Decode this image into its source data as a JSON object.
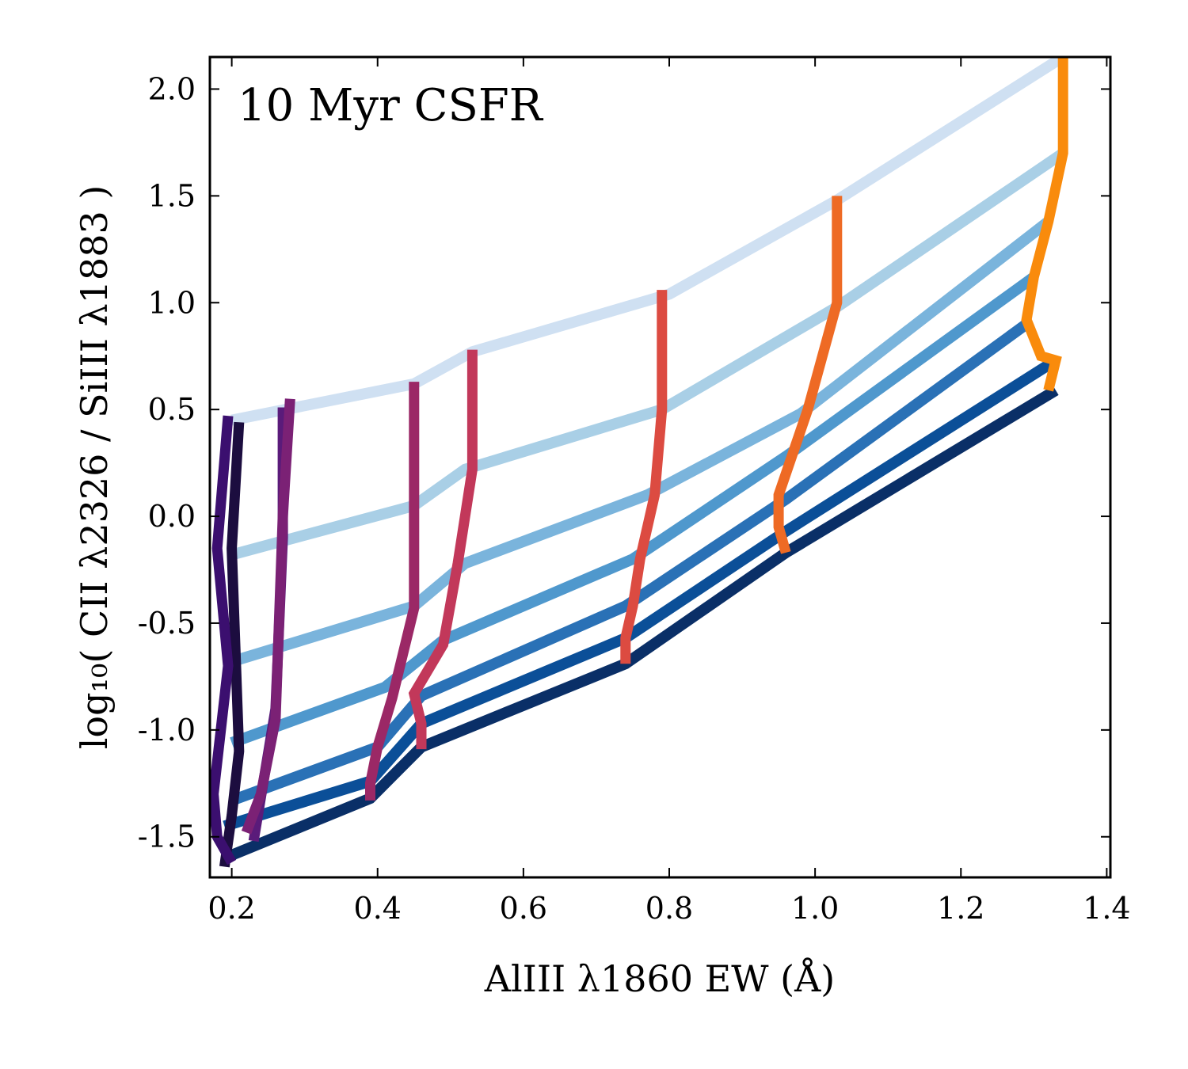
{
  "chart_data": {
    "type": "line",
    "annotation": "10 Myr CSFR",
    "xlabel": "AlIII λ1860 EW (Å)",
    "ylabel": "log₁₀( CII λ2326 / SiIII λ1883 )",
    "xlim": [
      0.17,
      1.405
    ],
    "ylim": [
      -1.69,
      2.15
    ],
    "xticks": [
      0.2,
      0.4,
      0.6,
      0.8,
      1.0,
      1.2,
      1.4
    ],
    "xtick_labels": [
      "0.2",
      "0.4",
      "0.6",
      "0.8",
      "1.0",
      "1.2",
      "1.4"
    ],
    "yticks": [
      2.0,
      1.5,
      1.0,
      0.5,
      0.0,
      -0.5,
      -1.0,
      -1.5
    ],
    "ytick_labels": [
      "2.0",
      "1.5",
      "1.0",
      "0.5",
      "0.0",
      "-0.5",
      "-1.0",
      "-1.5"
    ],
    "grid": false,
    "blue_series": [
      {
        "name": "blue-1",
        "color": "#cfe0f2",
        "x": [
          0.2,
          0.45,
          0.53,
          0.8,
          1.03,
          1.34
        ],
        "y": [
          0.45,
          0.62,
          0.77,
          1.04,
          1.48,
          2.15
        ]
      },
      {
        "name": "blue-2",
        "color": "#a9cfe6",
        "x": [
          0.2,
          0.45,
          0.52,
          0.79,
          1.03,
          1.34
        ],
        "y": [
          -0.18,
          0.05,
          0.22,
          0.5,
          0.98,
          1.7
        ]
      },
      {
        "name": "blue-3",
        "color": "#7ab4dc",
        "x": [
          0.2,
          0.45,
          0.52,
          0.77,
          0.98,
          1.32
        ],
        "y": [
          -0.68,
          -0.42,
          -0.22,
          0.1,
          0.48,
          1.38
        ]
      },
      {
        "name": "blue-4",
        "color": "#4f98cd",
        "x": [
          0.2,
          0.41,
          0.49,
          0.75,
          0.96,
          1.3
        ],
        "y": [
          -1.06,
          -0.8,
          -0.58,
          -0.2,
          0.28,
          1.12
        ]
      },
      {
        "name": "blue-5",
        "color": "#2a71b6",
        "x": [
          0.2,
          0.4,
          0.46,
          0.74,
          0.96,
          1.29
        ],
        "y": [
          -1.33,
          -1.08,
          -0.84,
          -0.42,
          0.08,
          0.9
        ]
      },
      {
        "name": "blue-6",
        "color": "#0b4f98",
        "x": [
          0.19,
          0.39,
          0.46,
          0.74,
          0.96,
          1.33
        ],
        "y": [
          -1.45,
          -1.24,
          -0.97,
          -0.57,
          -0.07,
          0.73
        ]
      },
      {
        "name": "blue-7",
        "color": "#0a2f67",
        "x": [
          0.19,
          0.39,
          0.46,
          0.74,
          0.96,
          1.33
        ],
        "y": [
          -1.6,
          -1.32,
          -1.08,
          -0.69,
          -0.17,
          0.59
        ]
      }
    ],
    "warm_series": [
      {
        "name": "dark-1",
        "color": "#1c0d3f",
        "x": [
          0.21,
          0.2,
          0.21,
          0.2,
          0.19
        ],
        "y": [
          0.44,
          -0.15,
          -1.1,
          -1.4,
          -1.64
        ]
      },
      {
        "name": "dark-2",
        "color": "#3b0f6f",
        "x": [
          0.195,
          0.18,
          0.195,
          0.175,
          0.18,
          0.2
        ],
        "y": [
          0.47,
          -0.15,
          -0.7,
          -1.3,
          -1.5,
          -1.62
        ]
      },
      {
        "name": "purple-1",
        "color": "#5a1b7a",
        "x": [
          0.27,
          0.27,
          0.26,
          0.23
        ],
        "y": [
          0.51,
          -0.1,
          -0.9,
          -1.52
        ]
      },
      {
        "name": "purple-2",
        "color": "#7b2175",
        "x": [
          0.28,
          0.27,
          0.26,
          0.24,
          0.22
        ],
        "y": [
          0.55,
          0.0,
          -0.95,
          -1.3,
          -1.48
        ]
      },
      {
        "name": "magenta",
        "color": "#9b2866",
        "x": [
          0.45,
          0.45,
          0.42,
          0.4,
          0.39,
          0.39
        ],
        "y": [
          0.63,
          -0.43,
          -0.85,
          -1.08,
          -1.25,
          -1.33
        ]
      },
      {
        "name": "crimson",
        "color": "#c2385a",
        "x": [
          0.53,
          0.53,
          0.51,
          0.49,
          0.45,
          0.46,
          0.46
        ],
        "y": [
          0.78,
          0.22,
          -0.22,
          -0.6,
          -0.83,
          -0.97,
          -1.09
        ]
      },
      {
        "name": "red-orange",
        "color": "#dc4b41",
        "x": [
          0.79,
          0.79,
          0.78,
          0.76,
          0.75,
          0.74,
          0.74
        ],
        "y": [
          1.06,
          0.5,
          0.1,
          -0.2,
          -0.42,
          -0.57,
          -0.69
        ]
      },
      {
        "name": "orange",
        "color": "#ee6a24",
        "x": [
          1.03,
          1.03,
          0.99,
          0.95,
          0.95,
          0.96
        ],
        "y": [
          1.5,
          1.0,
          0.5,
          0.1,
          -0.05,
          -0.17
        ]
      },
      {
        "name": "amber",
        "color": "#f98b0c",
        "x": [
          1.34,
          1.34,
          1.32,
          1.3,
          1.29,
          1.31,
          1.33,
          1.32
        ],
        "y": [
          2.15,
          1.7,
          1.38,
          1.12,
          0.92,
          0.75,
          0.73,
          0.59
        ]
      }
    ]
  }
}
